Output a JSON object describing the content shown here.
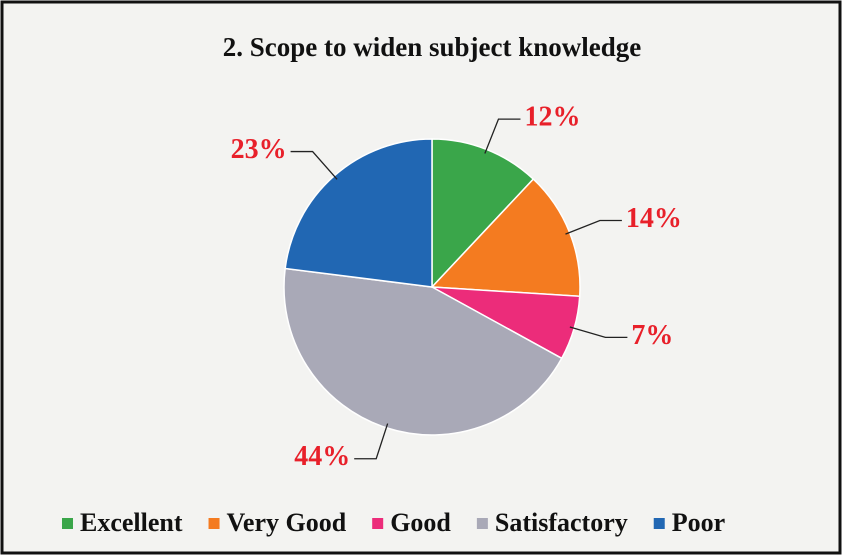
{
  "chart_data": {
    "type": "pie",
    "title": "2. Scope to widen subject knowledge",
    "categories": [
      "Excellent",
      "Very Good",
      "Good",
      "Satisfactory",
      "Poor"
    ],
    "values": [
      12,
      14,
      7,
      44,
      23
    ],
    "value_labels": [
      "12%",
      "14%",
      "7%",
      "44%",
      "23%"
    ],
    "colors": [
      "#3aa64a",
      "#f47b20",
      "#ec2c7a",
      "#a9a9b7",
      "#2167b3"
    ],
    "legend": "bottom"
  }
}
